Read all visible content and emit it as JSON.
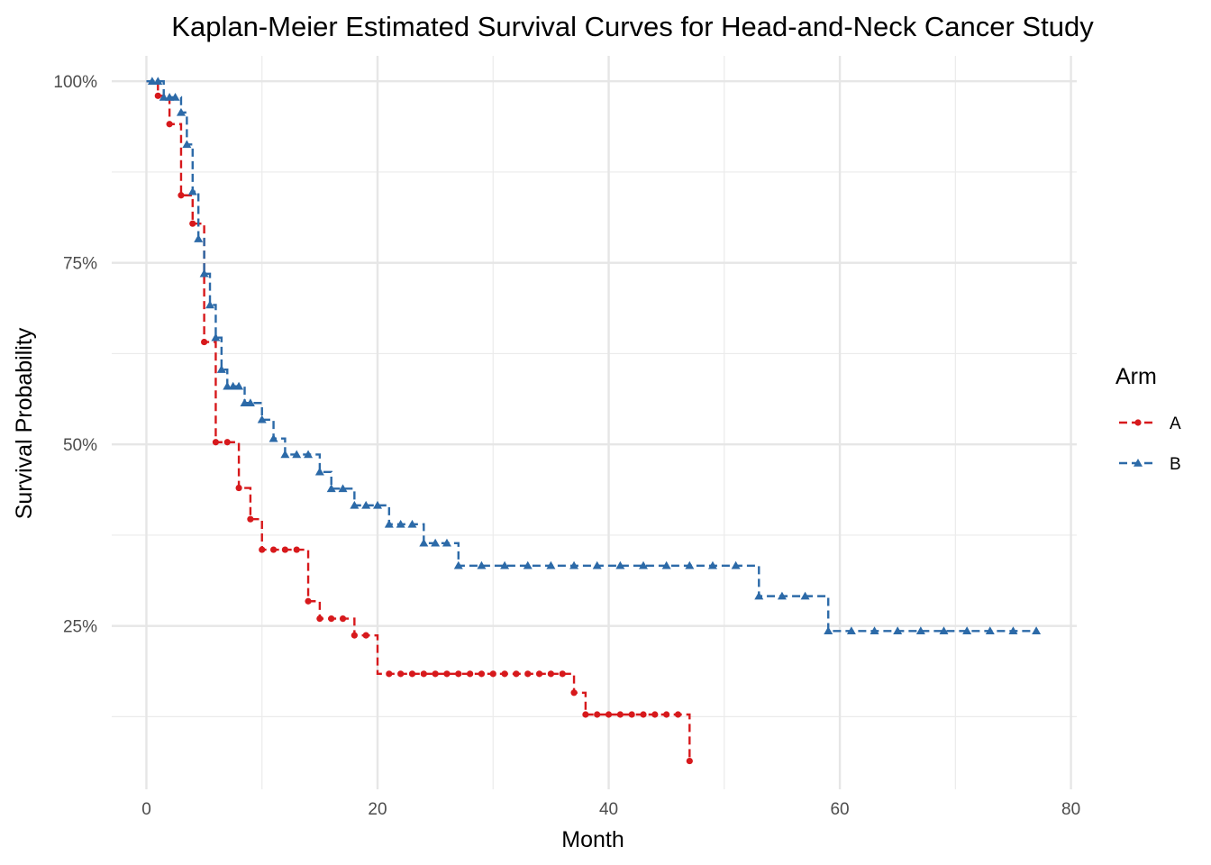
{
  "chart_data": {
    "type": "line",
    "subtype": "kaplan-meier-step",
    "title": "Kaplan-Meier Estimated Survival Curves for Head-and-Neck Cancer Study",
    "xlabel": "Month",
    "ylabel": "Survival Probability",
    "xlim": [
      -3,
      80.5
    ],
    "ylim": [
      0.025,
      1.035
    ],
    "x_ticks": [
      0,
      20,
      40,
      60,
      80
    ],
    "x_tick_labels": [
      "0",
      "20",
      "40",
      "60",
      "80"
    ],
    "y_ticks": [
      0.25,
      0.5,
      0.75,
      1.0
    ],
    "y_tick_labels": [
      "25%",
      "50%",
      "75%",
      "100%"
    ],
    "y_minor_ticks": [
      0.125,
      0.375,
      0.625,
      0.875
    ],
    "x_minor_ticks": [
      10,
      30,
      50,
      70
    ],
    "grid": true,
    "legend": {
      "title": "Arm",
      "position": "right"
    },
    "series": [
      {
        "name": "A",
        "color": "#d7191c",
        "marker": "circle",
        "line_style": "dashed",
        "steps": [
          [
            0,
            1.0
          ],
          [
            1,
            0.98
          ],
          [
            2,
            0.941
          ],
          [
            3,
            0.843
          ],
          [
            4,
            0.804
          ],
          [
            5,
            0.641
          ],
          [
            6,
            0.503
          ],
          [
            8,
            0.44
          ],
          [
            9,
            0.397
          ],
          [
            10,
            0.355
          ],
          [
            14,
            0.284
          ],
          [
            15,
            0.26
          ],
          [
            18,
            0.237
          ],
          [
            20,
            0.184
          ],
          [
            37,
            0.158
          ],
          [
            38,
            0.128
          ],
          [
            47,
            0.064
          ]
        ],
        "end_x": 47,
        "censor_points": [
          [
            1,
            0.98
          ],
          [
            2,
            0.941
          ],
          [
            3,
            0.843
          ],
          [
            4,
            0.804
          ],
          [
            5,
            0.641
          ],
          [
            6,
            0.503
          ],
          [
            7,
            0.503
          ],
          [
            8,
            0.44
          ],
          [
            9,
            0.397
          ],
          [
            10,
            0.355
          ],
          [
            11,
            0.355
          ],
          [
            12,
            0.355
          ],
          [
            13,
            0.355
          ],
          [
            14,
            0.284
          ],
          [
            15,
            0.26
          ],
          [
            16,
            0.26
          ],
          [
            17,
            0.26
          ],
          [
            18,
            0.237
          ],
          [
            19,
            0.237
          ],
          [
            21,
            0.184
          ],
          [
            22,
            0.184
          ],
          [
            23,
            0.184
          ],
          [
            24,
            0.184
          ],
          [
            25,
            0.184
          ],
          [
            26,
            0.184
          ],
          [
            27,
            0.184
          ],
          [
            28,
            0.184
          ],
          [
            29,
            0.184
          ],
          [
            30,
            0.184
          ],
          [
            31,
            0.184
          ],
          [
            32,
            0.184
          ],
          [
            33,
            0.184
          ],
          [
            34,
            0.184
          ],
          [
            35,
            0.184
          ],
          [
            36,
            0.184
          ],
          [
            37,
            0.158
          ],
          [
            38,
            0.128
          ],
          [
            39,
            0.128
          ],
          [
            40,
            0.128
          ],
          [
            41,
            0.128
          ],
          [
            42,
            0.128
          ],
          [
            43,
            0.128
          ],
          [
            44,
            0.128
          ],
          [
            45,
            0.128
          ],
          [
            46,
            0.128
          ],
          [
            47,
            0.064
          ]
        ]
      },
      {
        "name": "B",
        "color": "#2c6aa8",
        "marker": "triangle",
        "line_style": "dashed",
        "steps": [
          [
            0,
            1.0
          ],
          [
            1.5,
            0.978
          ],
          [
            3,
            0.957
          ],
          [
            3.5,
            0.913
          ],
          [
            4,
            0.848
          ],
          [
            4.5,
            0.783
          ],
          [
            5,
            0.735
          ],
          [
            5.5,
            0.692
          ],
          [
            6,
            0.647
          ],
          [
            6.5,
            0.603
          ],
          [
            7,
            0.58
          ],
          [
            8.5,
            0.557
          ],
          [
            10,
            0.534
          ],
          [
            11,
            0.508
          ],
          [
            12,
            0.486
          ],
          [
            15,
            0.462
          ],
          [
            16,
            0.439
          ],
          [
            18,
            0.416
          ],
          [
            21,
            0.39
          ],
          [
            24,
            0.364
          ],
          [
            27,
            0.333
          ],
          [
            53,
            0.291
          ],
          [
            59,
            0.243
          ]
        ],
        "end_x": 77,
        "censor_points": [
          [
            0.5,
            1.0
          ],
          [
            1,
            1.0
          ],
          [
            1.5,
            0.978
          ],
          [
            2,
            0.978
          ],
          [
            2.5,
            0.978
          ],
          [
            3,
            0.957
          ],
          [
            3.5,
            0.913
          ],
          [
            4,
            0.848
          ],
          [
            4.5,
            0.783
          ],
          [
            5,
            0.735
          ],
          [
            5.5,
            0.692
          ],
          [
            6,
            0.647
          ],
          [
            6.5,
            0.603
          ],
          [
            7,
            0.58
          ],
          [
            7.5,
            0.58
          ],
          [
            8,
            0.58
          ],
          [
            8.5,
            0.557
          ],
          [
            9,
            0.557
          ],
          [
            10,
            0.534
          ],
          [
            11,
            0.508
          ],
          [
            12,
            0.486
          ],
          [
            13,
            0.486
          ],
          [
            14,
            0.486
          ],
          [
            15,
            0.462
          ],
          [
            16,
            0.439
          ],
          [
            17,
            0.439
          ],
          [
            18,
            0.416
          ],
          [
            19,
            0.416
          ],
          [
            20,
            0.416
          ],
          [
            21,
            0.39
          ],
          [
            22,
            0.39
          ],
          [
            23,
            0.39
          ],
          [
            24,
            0.364
          ],
          [
            25,
            0.364
          ],
          [
            26,
            0.364
          ],
          [
            27,
            0.333
          ],
          [
            29,
            0.333
          ],
          [
            31,
            0.333
          ],
          [
            33,
            0.333
          ],
          [
            35,
            0.333
          ],
          [
            37,
            0.333
          ],
          [
            39,
            0.333
          ],
          [
            41,
            0.333
          ],
          [
            43,
            0.333
          ],
          [
            45,
            0.333
          ],
          [
            47,
            0.333
          ],
          [
            49,
            0.333
          ],
          [
            51,
            0.333
          ],
          [
            53,
            0.291
          ],
          [
            55,
            0.291
          ],
          [
            57,
            0.291
          ],
          [
            59,
            0.243
          ],
          [
            61,
            0.243
          ],
          [
            63,
            0.243
          ],
          [
            65,
            0.243
          ],
          [
            67,
            0.243
          ],
          [
            69,
            0.243
          ],
          [
            71,
            0.243
          ],
          [
            73,
            0.243
          ],
          [
            75,
            0.243
          ],
          [
            77,
            0.243
          ]
        ]
      }
    ]
  }
}
